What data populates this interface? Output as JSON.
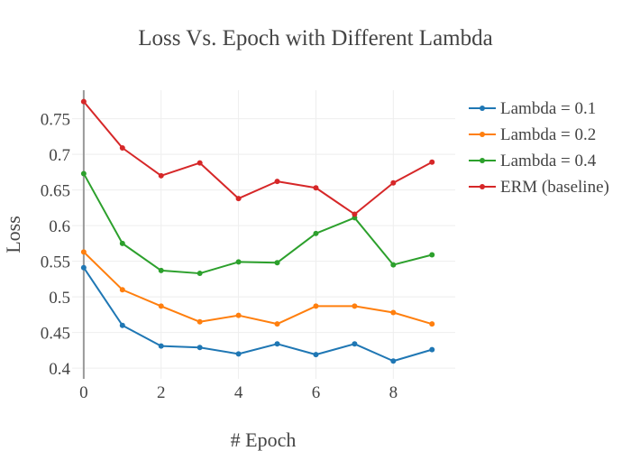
{
  "chart_data": {
    "type": "line",
    "title": "Loss Vs. Epoch with Different Lambda",
    "xlabel": "# Epoch",
    "ylabel": "Loss",
    "x": [
      0,
      1,
      2,
      3,
      4,
      5,
      6,
      7,
      8,
      9
    ],
    "xlim": [
      -0.3,
      9.6
    ],
    "ylim": [
      0.385,
      0.79
    ],
    "xticks": [
      0,
      2,
      4,
      6,
      8
    ],
    "xtick_labels": [
      "0",
      "2",
      "4",
      "6",
      "8"
    ],
    "yticks": [
      0.4,
      0.45,
      0.5,
      0.55,
      0.6,
      0.65,
      0.7,
      0.75
    ],
    "ytick_labels": [
      "0.4",
      "0.45",
      "0.5",
      "0.55",
      "0.6",
      "0.65",
      "0.7",
      "0.75"
    ],
    "grid": true,
    "legend_position": "right",
    "series": [
      {
        "name": "Lambda = 0.1",
        "color": "#1f77b4",
        "values": [
          0.541,
          0.46,
          0.431,
          0.429,
          0.42,
          0.434,
          0.419,
          0.434,
          0.41,
          0.426
        ]
      },
      {
        "name": "Lambda = 0.2",
        "color": "#ff7f0e",
        "values": [
          0.563,
          0.51,
          0.487,
          0.465,
          0.474,
          0.462,
          0.487,
          0.487,
          0.478,
          0.462
        ]
      },
      {
        "name": "Lambda = 0.4",
        "color": "#2ca02c",
        "values": [
          0.673,
          0.575,
          0.537,
          0.533,
          0.549,
          0.548,
          0.589,
          0.611,
          0.545,
          0.559
        ]
      },
      {
        "name": "ERM (baseline)",
        "color": "#d62728",
        "values": [
          0.774,
          0.709,
          0.67,
          0.688,
          0.638,
          0.662,
          0.653,
          0.616,
          0.66,
          0.689
        ]
      }
    ]
  }
}
